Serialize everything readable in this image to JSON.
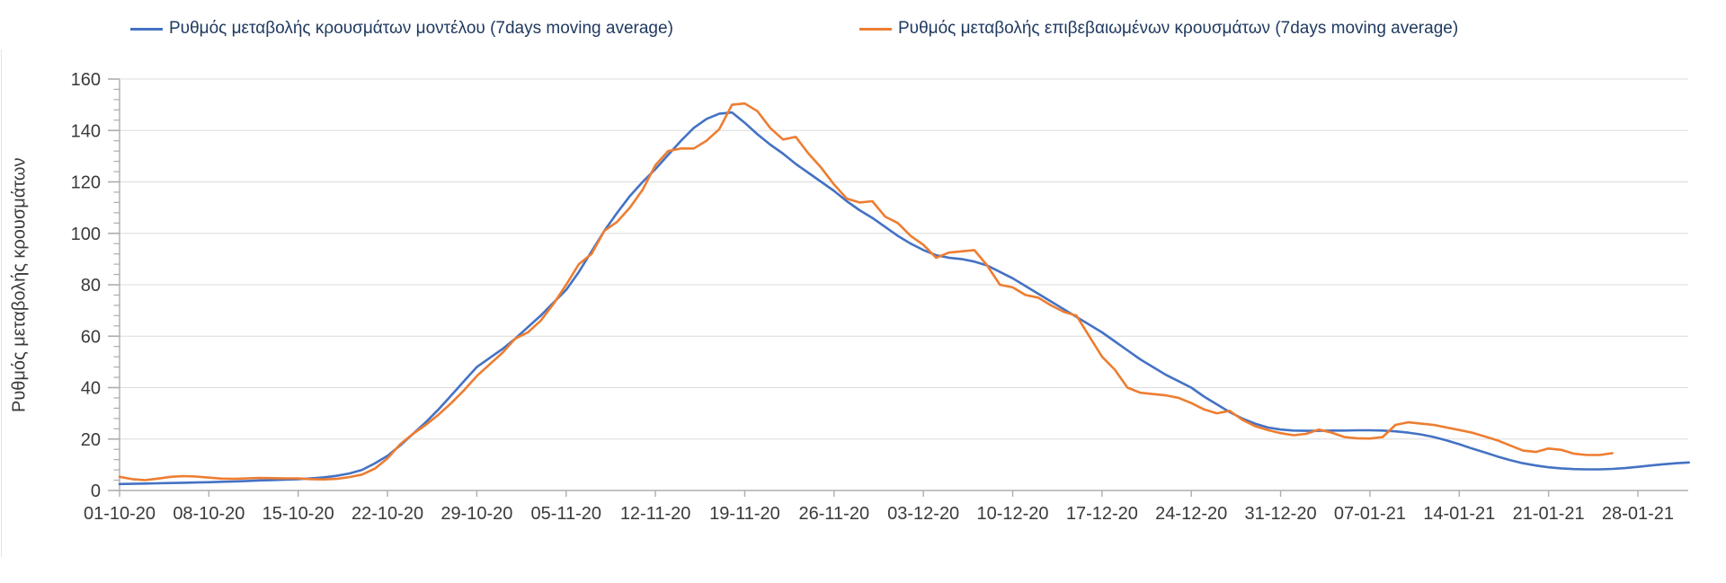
{
  "legend": {
    "items": [
      {
        "id": "model",
        "label": "Ρυθμός μεταβολής κρουσμάτων μοντέλου (7days moving average)",
        "color": "#4472c4"
      },
      {
        "id": "confirmed",
        "label": "Ρυθμός μεταβολής επιβεβαιωμένων κρουσμάτων (7days moving average)",
        "color": "#ed7d31"
      }
    ]
  },
  "chart_data": {
    "type": "line",
    "title": "",
    "xlabel": "",
    "ylabel": "Ρυθμός μεταβολής κρουσμάτων",
    "ylim": [
      0,
      160
    ],
    "y_major_tick_step": 20,
    "y_minor_tick_step": 4,
    "grid": "horizontal-only",
    "legend_position": "top",
    "x_tick_labels": [
      "01-10-20",
      "08-10-20",
      "15-10-20",
      "22-10-20",
      "29-10-20",
      "05-11-20",
      "12-11-20",
      "19-11-20",
      "26-11-20",
      "03-12-20",
      "10-12-20",
      "17-12-20",
      "24-12-20",
      "31-12-20",
      "07-01-21",
      "14-01-21",
      "21-01-21",
      "28-01-21"
    ],
    "x_tick_every_days": 7,
    "style": {
      "axis_color": "#adadad",
      "grid_color": "#dcdcdc",
      "tick_label_color": "#3a3a3a",
      "legend_text_color": "#203a60",
      "line_width": 2.6
    },
    "series": [
      {
        "name": "Ρυθμός μεταβολής κρουσμάτων μοντέλου (7days moving average)",
        "color": "#4472c4",
        "start_day": 0,
        "values_daily": [
          2.5,
          2.6,
          2.7,
          2.8,
          2.9,
          3.0,
          3.1,
          3.2,
          3.4,
          3.5,
          3.7,
          3.9,
          4.0,
          4.2,
          4.4,
          4.7,
          5.1,
          5.7,
          6.6,
          8.0,
          10.5,
          13.5,
          17.5,
          22.0,
          26.5,
          31.5,
          37.0,
          42.5,
          48.0,
          51.5,
          55.0,
          59.0,
          63.5,
          68.0,
          73.0,
          78.0,
          85.0,
          93.0,
          101.0,
          108.0,
          114.5,
          120.0,
          125.0,
          130.5,
          136.0,
          141.0,
          144.5,
          146.5,
          147.0,
          143.0,
          138.5,
          134.5,
          131.0,
          127.0,
          123.5,
          120.0,
          116.5,
          112.5,
          109.0,
          106.0,
          102.5,
          99.0,
          96.0,
          93.5,
          91.5,
          90.5,
          90.0,
          89.0,
          87.5,
          85.0,
          82.5,
          79.5,
          76.5,
          73.5,
          70.5,
          67.5,
          64.5,
          61.5,
          58.0,
          54.5,
          51.0,
          48.0,
          45.0,
          42.5,
          40.0,
          36.5,
          33.5,
          30.5,
          28.0,
          26.0,
          24.5,
          23.7,
          23.3,
          23.2,
          23.2,
          23.3,
          23.3,
          23.4,
          23.4,
          23.3,
          23.0,
          22.5,
          21.8,
          20.8,
          19.5,
          18.0,
          16.3,
          14.8,
          13.2,
          11.8,
          10.6,
          9.7,
          9.0,
          8.6,
          8.3,
          8.2,
          8.2,
          8.4,
          8.7,
          9.2,
          9.7,
          10.2,
          10.6,
          10.9
        ]
      },
      {
        "name": "Ρυθμός μεταβολής επιβεβαιωμένων κρουσμάτων (7days moving average)",
        "color": "#ed7d31",
        "start_day": 0,
        "values_daily": [
          5.3,
          4.4,
          4.0,
          4.6,
          5.3,
          5.6,
          5.4,
          5.0,
          4.6,
          4.5,
          4.7,
          4.9,
          4.8,
          4.7,
          4.7,
          4.4,
          4.3,
          4.5,
          5.2,
          6.2,
          8.5,
          12.5,
          18.0,
          22.0,
          25.5,
          29.5,
          34.0,
          39.0,
          44.5,
          49.0,
          53.5,
          59.0,
          61.5,
          66.0,
          72.5,
          80.0,
          88.0,
          92.0,
          101.0,
          104.5,
          110.0,
          117.0,
          126.5,
          132.0,
          133.0,
          133.0,
          136.0,
          140.5,
          150.0,
          150.5,
          147.5,
          141.0,
          136.5,
          137.5,
          131.0,
          125.5,
          119.0,
          113.5,
          112.0,
          112.5,
          106.5,
          104.0,
          99.0,
          95.5,
          90.5,
          92.5,
          93.0,
          93.5,
          87.5,
          80.0,
          79.0,
          76.0,
          75.0,
          72.0,
          69.5,
          68.0,
          60.0,
          52.0,
          47.0,
          40.0,
          38.0,
          37.5,
          37.0,
          36.0,
          34.0,
          31.5,
          30.0,
          31.0,
          27.5,
          25.0,
          23.5,
          22.3,
          21.5,
          22.0,
          23.7,
          22.5,
          20.8,
          20.3,
          20.2,
          20.8,
          25.5,
          26.5,
          26.0,
          25.5,
          24.5,
          23.5,
          22.5,
          21.0,
          19.5,
          17.5,
          15.5,
          15.0,
          16.3,
          15.8,
          14.3,
          13.8,
          13.8,
          14.5
        ]
      }
    ]
  }
}
